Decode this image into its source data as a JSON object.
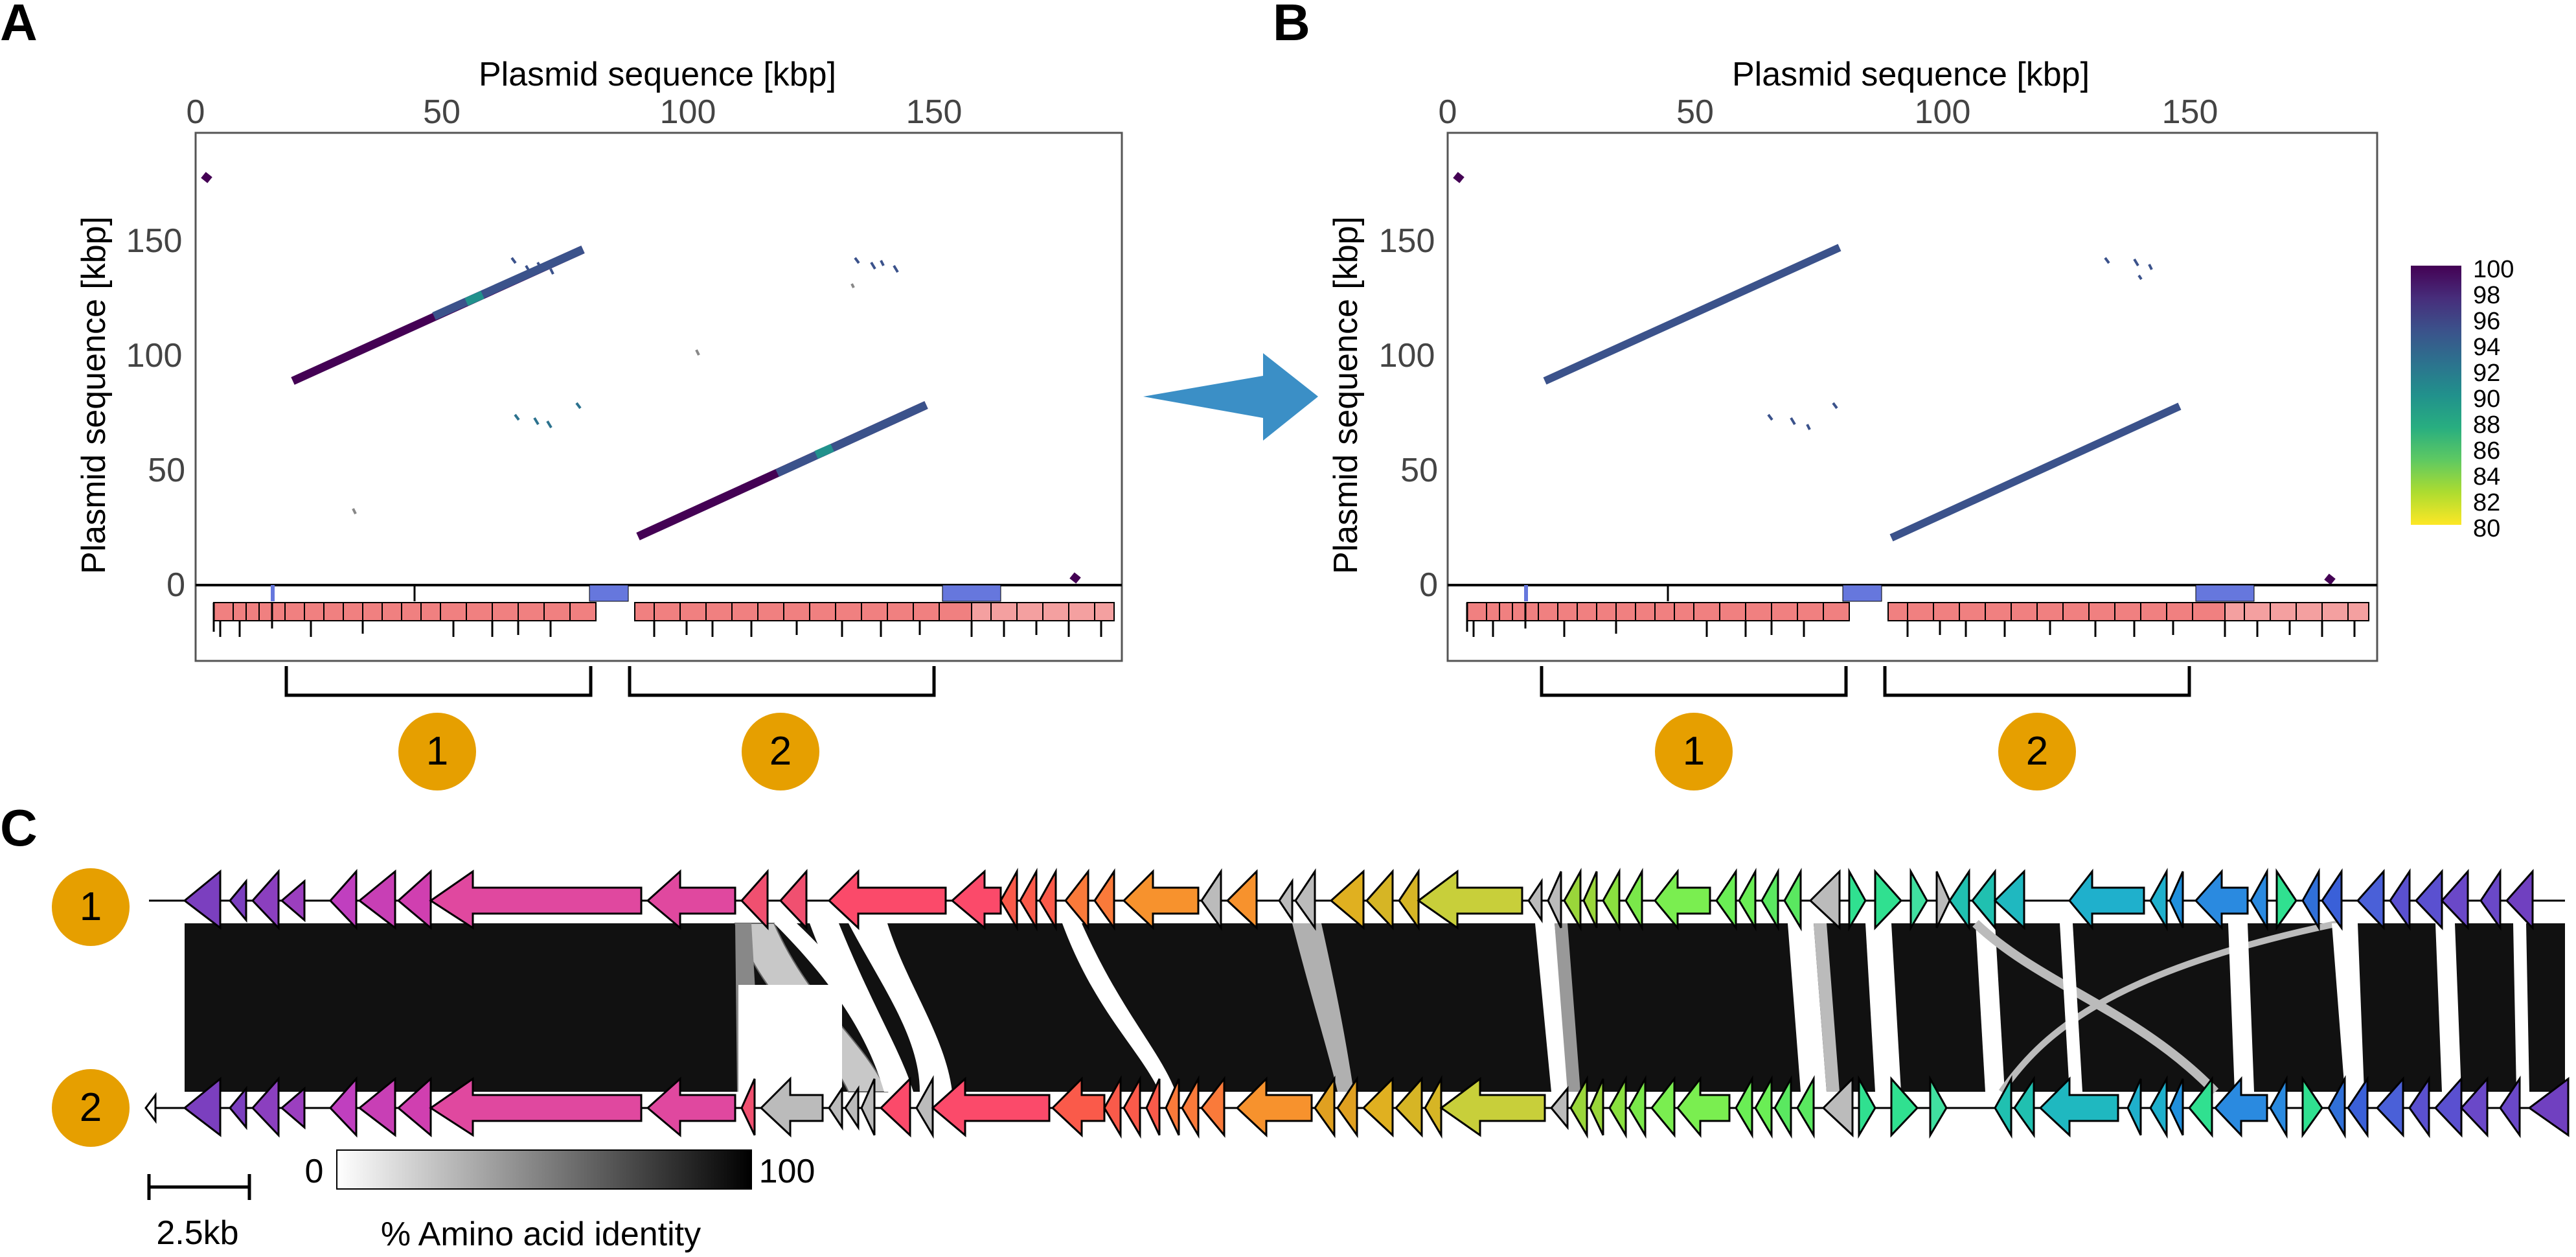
{
  "panels": {
    "A": {
      "label": "A",
      "x_title": "Plasmid sequence [kbp]",
      "y_title": "Plasmid sequence [kbp]",
      "x_ticks": [
        "0",
        "50",
        "100",
        "150"
      ],
      "y_ticks": [
        "0",
        "50",
        "100",
        "150"
      ],
      "brackets": [
        "1",
        "2"
      ]
    },
    "B": {
      "label": "B",
      "x_title": "Plasmid sequence [kbp]",
      "y_title": "Plasmid sequence [kbp]",
      "x_ticks": [
        "0",
        "50",
        "100",
        "150"
      ],
      "y_ticks": [
        "0",
        "50",
        "100",
        "150"
      ],
      "brackets": [
        "1",
        "2"
      ]
    },
    "C": {
      "label": "C",
      "track_labels": [
        "1",
        "2"
      ],
      "scalebar_label": "2.5kb",
      "identity_min": "0",
      "identity_max": "100",
      "identity_title": "% Amino acid identity"
    }
  },
  "colorbar": {
    "ticks": [
      "100",
      "98",
      "96",
      "94",
      "92",
      "90",
      "88",
      "86",
      "84",
      "82",
      "80"
    ],
    "colors": [
      "#440154",
      "#472d7b",
      "#3b528b",
      "#2c728e",
      "#21918c",
      "#28ae80",
      "#5ec962",
      "#addc30",
      "#fde725"
    ]
  },
  "colors": {
    "accent_badge": "#e69f00",
    "arrow": "#3b8fc6",
    "main_line": "#3b528b",
    "dot_dark": "#440154"
  },
  "icons": {
    "process_arrow": "right-arrow-icon"
  }
}
